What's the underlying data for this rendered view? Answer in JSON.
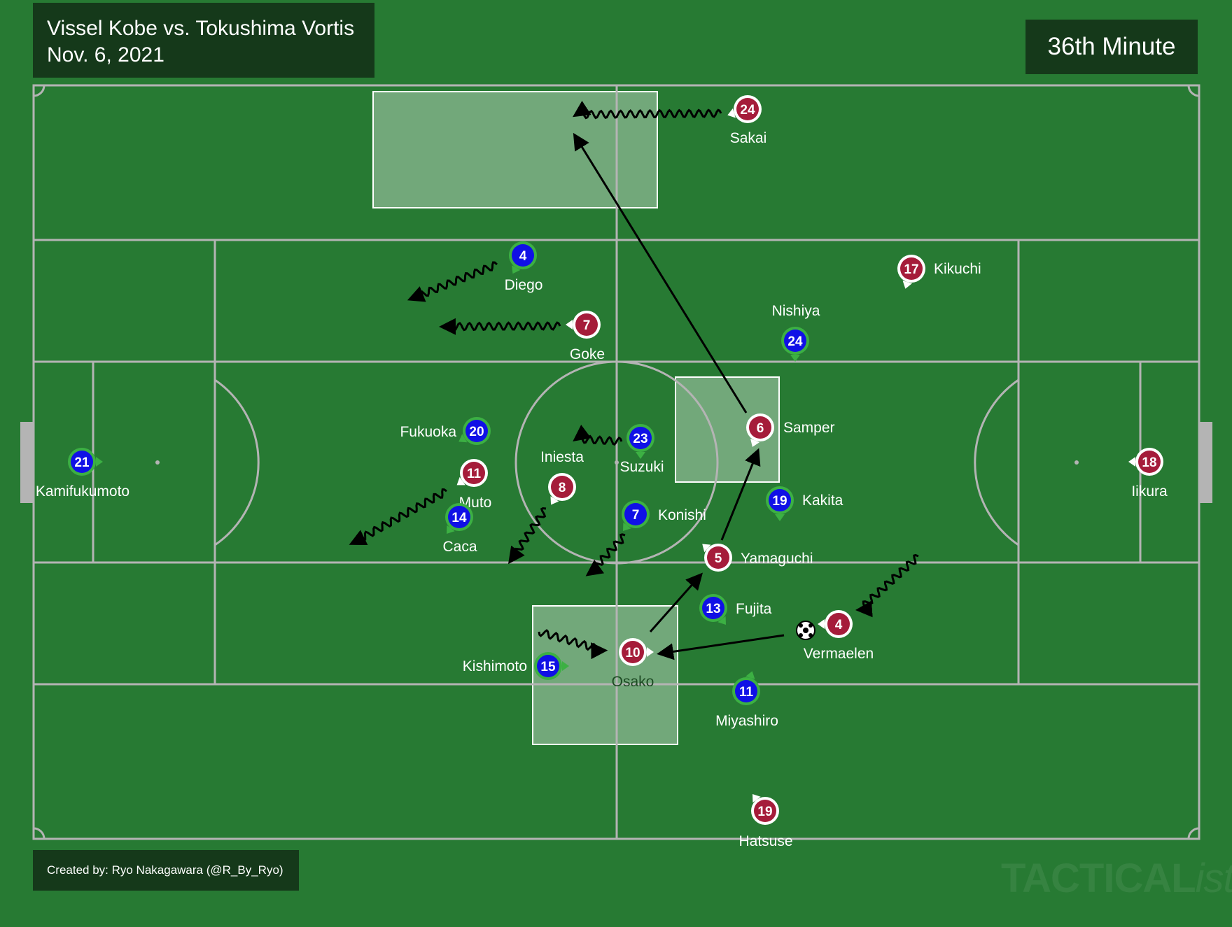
{
  "header": {
    "match": "Vissel Kobe vs. Tokushima Vortis",
    "date": "Nov. 6, 2021",
    "minute": "36th Minute"
  },
  "footer": {
    "credit": "Created by: Ryo Nakagawara (@R_By_Ryo)",
    "watermark_main": "TACTICAL",
    "watermark_italic": "ista"
  },
  "colors": {
    "pitch": "#277a33",
    "lines": "#b4b4b4",
    "vissel": "#a51c3a",
    "tokushima": "#1010e6",
    "tokushima_ring": "#3cb043",
    "box_dark": "#15391a"
  },
  "players": [
    {
      "id": "sakai",
      "team": "vissel",
      "number": "24",
      "name": "Sakai"
    },
    {
      "id": "kikuchi",
      "team": "vissel",
      "number": "17",
      "name": "Kikuchi"
    },
    {
      "id": "goke",
      "team": "vissel",
      "number": "7",
      "name": "Goke"
    },
    {
      "id": "samper",
      "team": "vissel",
      "number": "6",
      "name": "Samper"
    },
    {
      "id": "muto",
      "team": "vissel",
      "number": "11",
      "name": "Muto"
    },
    {
      "id": "vissel-8",
      "team": "vissel",
      "number": "8",
      "name": ""
    },
    {
      "id": "yamaguchi",
      "team": "vissel",
      "number": "5",
      "name": "Yamaguchi"
    },
    {
      "id": "osako",
      "team": "vissel",
      "number": "10",
      "name": "Osako"
    },
    {
      "id": "vermaelen",
      "team": "vissel",
      "number": "4",
      "name": "Vermaelen"
    },
    {
      "id": "hatsuse",
      "team": "vissel",
      "number": "19",
      "name": "Hatsuse"
    },
    {
      "id": "iikura",
      "team": "vissel",
      "number": "18",
      "name": "Iikura"
    },
    {
      "id": "diego",
      "team": "tokushima",
      "number": "4",
      "name": "Diego"
    },
    {
      "id": "nishiya",
      "team": "tokushima",
      "number": "24",
      "name": "Nishiya"
    },
    {
      "id": "fukuoka",
      "team": "tokushima",
      "number": "20",
      "name": "Fukuoka"
    },
    {
      "id": "suzuki",
      "team": "tokushima",
      "number": "23",
      "name": "Suzuki"
    },
    {
      "id": "caca",
      "team": "tokushima",
      "number": "14",
      "name": "Caca"
    },
    {
      "id": "konishi",
      "team": "tokushima",
      "number": "7",
      "name": "Konishi"
    },
    {
      "id": "kakita",
      "team": "tokushima",
      "number": "19",
      "name": "Kakita"
    },
    {
      "id": "fujita",
      "team": "tokushima",
      "number": "13",
      "name": "Fujita"
    },
    {
      "id": "kishimoto",
      "team": "tokushima",
      "number": "15",
      "name": "Kishimoto"
    },
    {
      "id": "miyashiro",
      "team": "tokushima",
      "number": "11",
      "name": "Miyashiro"
    },
    {
      "id": "kamifukumoto",
      "team": "tokushima",
      "number": "21",
      "name": "Kamifukumoto"
    }
  ],
  "iniesta_label": "Iniesta"
}
